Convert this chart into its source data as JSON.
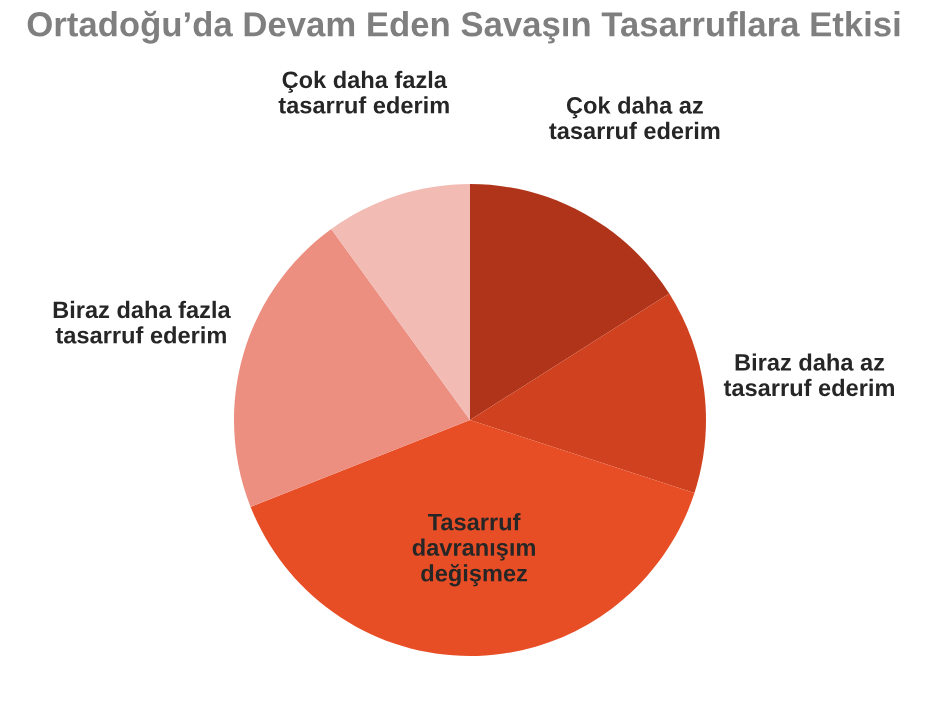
{
  "chart_data": {
    "type": "pie",
    "title": "Ortadoğu’da Devam Eden Savaşın Tasarruflara Etkisi",
    "categories": [
      "Çok daha az\ntasarruf ederim",
      "Biraz daha az\ntasarruf ederim",
      "Tasarruf\ndavranışım\ndeğişmez",
      "Biraz daha fazla\ntasarruf ederim",
      "Çok daha fazla\ntasarruf ederim"
    ],
    "values": [
      16,
      14,
      39,
      21,
      10
    ],
    "colors": [
      "#b0341a",
      "#cf411f",
      "#e84e26",
      "#ec8f80",
      "#f2bcb5"
    ],
    "legend": false
  }
}
